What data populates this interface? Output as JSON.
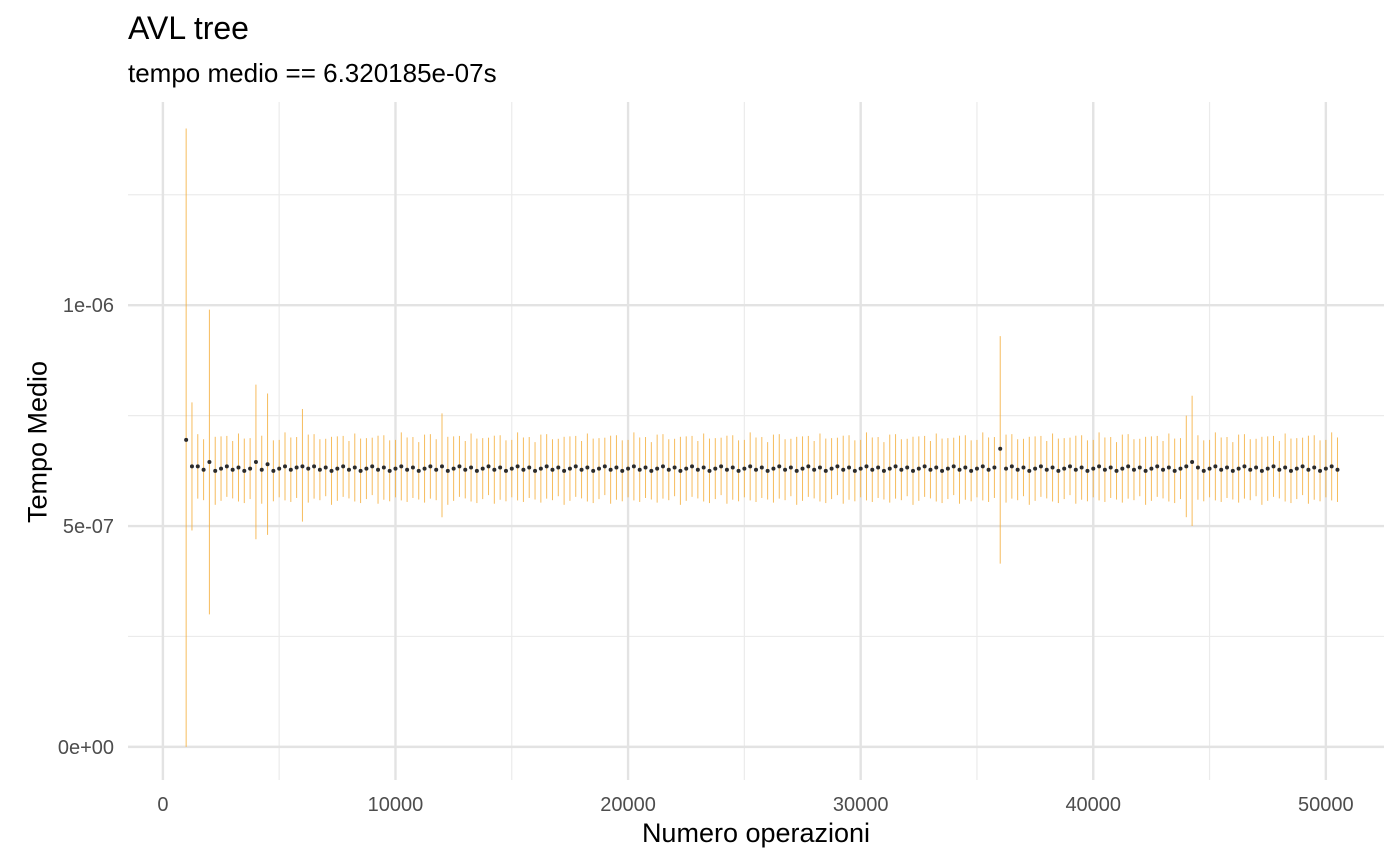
{
  "chart_data": {
    "type": "scatter",
    "title": "AVL tree",
    "subtitle": "tempo medio == 6.320185e-07s",
    "xlabel": "Numero operazioni",
    "ylabel": "Tempo Medio",
    "xlim": [
      -1500,
      52500
    ],
    "ylim": [
      -7.5e-08,
      1.46e-06
    ],
    "x_ticks": [
      0,
      10000,
      20000,
      30000,
      40000,
      50000
    ],
    "x_tick_labels": [
      "0",
      "10000",
      "20000",
      "30000",
      "40000",
      "50000"
    ],
    "y_ticks": [
      0,
      5e-07,
      1e-06
    ],
    "y_tick_labels": [
      "0e+00",
      "5e-07",
      "1e-06"
    ],
    "grid": true,
    "error_bar_color": "#f5b041",
    "point_color": "#2b2b2b",
    "x_start": 1000,
    "x_step": 250,
    "count": 199,
    "baseline_mean": 6.3e-07,
    "baseline_halfwidth": 6.5e-08,
    "special_points": [
      {
        "x": 1000,
        "y": 6.95e-07,
        "lo": 0,
        "hi": 1.4e-06
      },
      {
        "x": 1250,
        "y": 6.35e-07,
        "lo": 4.9e-07,
        "hi": 7.8e-07
      },
      {
        "x": 2000,
        "y": 6.45e-07,
        "lo": 3e-07,
        "hi": 9.9e-07
      },
      {
        "x": 4000,
        "y": 6.45e-07,
        "lo": 4.7e-07,
        "hi": 8.2e-07
      },
      {
        "x": 4500,
        "y": 6.4e-07,
        "lo": 4.8e-07,
        "hi": 8e-07
      },
      {
        "x": 6000,
        "y": 6.35e-07,
        "lo": 5.1e-07,
        "hi": 7.65e-07
      },
      {
        "x": 12000,
        "y": 6.35e-07,
        "lo": 5.2e-07,
        "hi": 7.55e-07
      },
      {
        "x": 36000,
        "y": 6.75e-07,
        "lo": 4.15e-07,
        "hi": 9.3e-07
      },
      {
        "x": 44000,
        "y": 6.35e-07,
        "lo": 5.2e-07,
        "hi": 7.5e-07
      },
      {
        "x": 44250,
        "y": 6.45e-07,
        "lo": 5e-07,
        "hi": 7.95e-07
      }
    ]
  }
}
